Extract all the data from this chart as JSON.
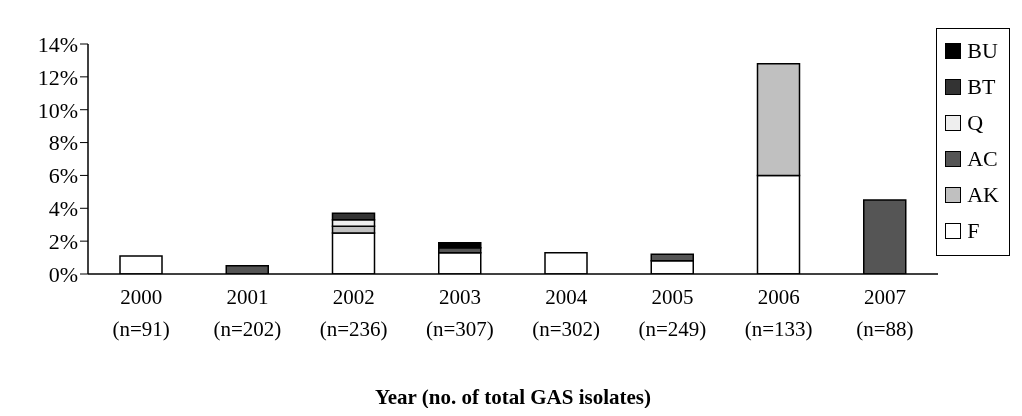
{
  "chart_data": {
    "type": "bar",
    "stacked": true,
    "xlabel": "Year (no. of total GAS isolates)",
    "categories": [
      "2000\n(n=91)",
      "2001\n(n=202)",
      "2002\n(n=236)",
      "2003\n(n=307)",
      "2004\n(n=302)",
      "2005\n(n=249)",
      "2006\n(n=133)",
      "2007\n(n=88)"
    ],
    "series": [
      {
        "name": "F",
        "color": "#ffffff",
        "values": [
          1.1,
          null,
          2.5,
          1.3,
          1.3,
          0.8,
          6.0,
          null
        ]
      },
      {
        "name": "AK",
        "color": "#c0c0c0",
        "values": [
          null,
          null,
          0.4,
          null,
          null,
          null,
          6.8,
          null
        ]
      },
      {
        "name": "AC",
        "color": "#555555",
        "values": [
          null,
          0.5,
          null,
          0.3,
          null,
          0.4,
          null,
          4.5
        ]
      },
      {
        "name": "Q",
        "color": "#eeeeee",
        "values": [
          null,
          null,
          0.4,
          null,
          null,
          null,
          null,
          null
        ]
      },
      {
        "name": "BT",
        "color": "#333333",
        "values": [
          null,
          null,
          0.4,
          null,
          null,
          null,
          null,
          null
        ]
      },
      {
        "name": "BU",
        "color": "#000000",
        "values": [
          null,
          null,
          null,
          0.3,
          null,
          null,
          null,
          null
        ]
      }
    ],
    "ylim": [
      0,
      14
    ],
    "yticks": [
      {
        "value": 0,
        "label": "0%"
      },
      {
        "value": 2,
        "label": "2%"
      },
      {
        "value": 4,
        "label": "4%"
      },
      {
        "value": 6,
        "label": "6%"
      },
      {
        "value": 8,
        "label": "8%"
      },
      {
        "value": 10,
        "label": "10%"
      },
      {
        "value": 12,
        "label": "12%"
      },
      {
        "value": 14,
        "label": "14%"
      }
    ],
    "grid": false,
    "legend": "right"
  }
}
